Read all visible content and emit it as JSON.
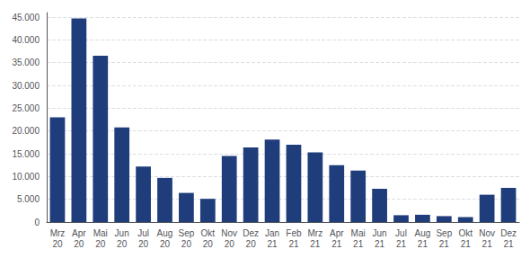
{
  "chart_data": {
    "type": "bar",
    "categories": [
      "Mrz\n20",
      "Apr\n20",
      "Mai\n20",
      "Jun\n20",
      "Jul\n20",
      "Aug\n20",
      "Sep\n20",
      "Okt\n20",
      "Nov\n20",
      "Dez\n20",
      "Jan\n21",
      "Feb\n21",
      "Mrz\n21",
      "Apr\n21",
      "Mai\n21",
      "Jun\n21",
      "Jul\n21",
      "Aug\n21",
      "Sep\n21",
      "Okt\n21",
      "Nov\n21",
      "Dez\n21"
    ],
    "values": [
      23000,
      44700,
      36500,
      20800,
      12200,
      9700,
      6400,
      5100,
      14500,
      16400,
      18100,
      17000,
      15300,
      12500,
      11300,
      7300,
      1500,
      1600,
      1300,
      1100,
      6000,
      7500
    ],
    "color": "#1F3D7A",
    "ylim": [
      0,
      46000
    ],
    "yticks": [
      0,
      {
        "value": 5000,
        "label": "5.000"
      },
      {
        "value": 10000,
        "label": "10.000"
      },
      {
        "value": 15000,
        "label": "15.000"
      },
      {
        "value": 20000,
        "label": "20.000"
      },
      {
        "value": 25000,
        "label": "25.000"
      },
      {
        "value": 30000,
        "label": "30.000"
      },
      {
        "value": 35000,
        "label": "35.000"
      },
      {
        "value": 40000,
        "label": "40.000"
      },
      {
        "value": 45000,
        "label": "45.000"
      }
    ],
    "grid": true
  }
}
